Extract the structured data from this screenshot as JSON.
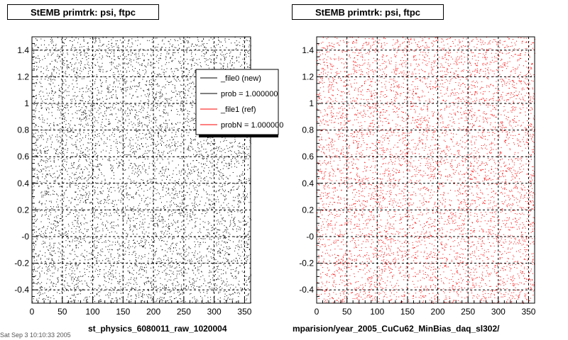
{
  "left_title": "StEMB primtrk: psi, ftpc",
  "right_title": "StEMB primtrk: psi, ftpc",
  "left_xlabel": "st_physics_6080011_raw_1020004",
  "right_xlabel": "mparision/year_2005_CuCu62_MinBias_daq_sl302/",
  "footer_text": "Sat Sep 3 10:10:33 2005",
  "legend": {
    "entries": [
      {
        "label": "_file0 (new)",
        "color": "#000000"
      },
      {
        "label": "prob = 1.000000",
        "color": "#000000"
      },
      {
        "label": "_file1 (ref)",
        "color": "#ff0000"
      },
      {
        "label": "probN = 1.000000",
        "color": "#ff0000"
      }
    ]
  },
  "chart_data": [
    {
      "type": "scatter",
      "title": "StEMB primtrk: psi, ftpc",
      "xlabel": "st_physics_6080011_raw_1020004",
      "ylabel": "",
      "xlim": [
        0,
        360
      ],
      "ylim": [
        -0.5,
        1.5
      ],
      "x_ticks": [
        "0",
        "50",
        "100",
        "150",
        "200",
        "250",
        "300",
        "350"
      ],
      "y_ticks": [
        "-0.4",
        "-0.2",
        "-0",
        "0.2",
        "0.4",
        "0.6",
        "0.8",
        "1",
        "1.2",
        "1.4"
      ],
      "series": [
        {
          "name": "_file0 (new)",
          "color": "#000000",
          "n_points": 6500
        }
      ],
      "grid": true,
      "legend_position": "top-right"
    },
    {
      "type": "scatter",
      "title": "StEMB primtrk: psi, ftpc",
      "xlabel": "mparision/year_2005_CuCu62_MinBias_daq_sl302/",
      "ylabel": "",
      "xlim": [
        0,
        360
      ],
      "ylim": [
        -0.5,
        1.5
      ],
      "x_ticks": [
        "0",
        "50",
        "100",
        "150",
        "200",
        "250",
        "300",
        "350"
      ],
      "y_ticks": [
        "-0.4",
        "-0.2",
        "-0",
        "0.2",
        "0.4",
        "0.6",
        "0.8",
        "1",
        "1.2",
        "1.4"
      ],
      "series": [
        {
          "name": "_file1 (ref)",
          "color": "#ff0000",
          "n_points": 6500
        }
      ],
      "grid": true
    }
  ]
}
